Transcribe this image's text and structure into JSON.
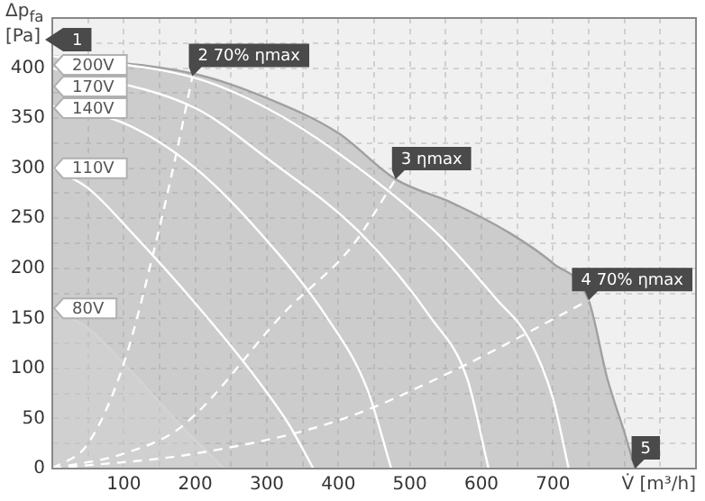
{
  "chart_data": {
    "type": "line",
    "xlabel": "V̇ [m³/h]",
    "ylabel": "Δp$_{fa}$ [Pa]",
    "xlim": [
      0,
      900
    ],
    "ylim": [
      0,
      450
    ],
    "xticks": [
      {
        "value": 50,
        "label": null
      },
      100,
      {
        "value": 150,
        "label": null
      },
      200,
      {
        "value": 250,
        "label": null
      },
      300,
      {
        "value": 350,
        "label": null
      },
      400,
      {
        "value": 450,
        "label": null
      },
      500,
      {
        "value": 550,
        "label": null
      },
      600,
      {
        "value": 650,
        "label": null
      },
      700,
      {
        "value": 750,
        "label": null
      },
      {
        "value": 800,
        "label": null
      },
      {
        "value": 850,
        "label": null
      }
    ],
    "yticks": [
      0,
      {
        "value": 25,
        "label": null
      },
      50,
      {
        "value": 75,
        "label": null
      },
      100,
      {
        "value": 125,
        "label": null
      },
      150,
      {
        "value": 175,
        "label": null
      },
      200,
      {
        "value": 225,
        "label": null
      },
      250,
      {
        "value": 275,
        "label": null
      },
      300,
      {
        "value": 325,
        "label": null
      },
      350,
      {
        "value": 375,
        "label": null
      },
      400,
      {
        "value": 425,
        "label": null
      }
    ],
    "grid": true,
    "legend": "left",
    "marker": "none",
    "series": [
      {
        "type": "area",
        "color": "#a0a0a0",
        "x": [
          0,
          200,
          300,
          400,
          480,
          560,
          640,
          700,
          750,
          776,
          800,
          815
        ],
        "values": [
          412,
          394,
          370,
          335,
          289,
          265,
          235,
          205,
          168,
          90,
          36,
          0
        ]
      },
      {
        "type": "area",
        "name": "80V",
        "color": "#ffffff",
        "x": [
          0,
          50,
          100,
          181,
          240
        ],
        "values": [
          160,
          140,
          105,
          42,
          0
        ]
      },
      {
        "name": "200V",
        "color": "#ffffff",
        "x": [
          0,
          200,
          300,
          400,
          538,
          620,
          666,
          700,
          722
        ],
        "values": [
          412,
          390,
          360,
          315,
          235,
          170,
          130,
          70,
          0
        ]
      },
      {
        "name": "170V",
        "color": "#ffffff",
        "x": [
          0,
          200,
          300,
          431,
          530,
          580,
          610
        ],
        "values": [
          400,
          360,
          310,
          235,
          150,
          90,
          0
        ]
      },
      {
        "name": "140V",
        "color": "#ffffff",
        "x": [
          0,
          100,
          200,
          291,
          385,
          440,
          474
        ],
        "values": [
          362,
          345,
          300,
          235,
          150,
          80,
          0
        ]
      },
      {
        "name": "110V",
        "color": "#ffffff",
        "x": [
          0,
          50,
          112,
          200,
          279,
          330,
          365
        ],
        "values": [
          300,
          280,
          235,
          165,
          96,
          45,
          0
        ]
      },
      {
        "color": "#ffffff",
        "line_style": "dashed",
        "x": [
          0,
          50,
          100,
          148,
          175,
          196
        ],
        "values": [
          0,
          25,
          105,
          235,
          320,
          392
        ]
      },
      {
        "color": "#ffffff",
        "line_style": "dashed",
        "x": [
          0,
          100,
          181,
          326,
          419,
          480
        ],
        "values": [
          0,
          15,
          42,
          157,
          222,
          289
        ]
      },
      {
        "color": "#ffffff",
        "line_style": "dashed",
        "x": [
          0,
          200,
          400,
          556,
          750
        ],
        "values": [
          0,
          15,
          48,
          96,
          168
        ]
      }
    ],
    "annotations": [
      "1",
      {
        "text": "2 70% ηmax",
        "x": 196,
        "y": 392
      },
      {
        "text": "3 ηmax",
        "x": 480,
        "y": 289
      },
      {
        "text": "4 70% ηmax",
        "x": 750,
        "y": 168
      },
      {
        "text": "5",
        "x": 815,
        "y": 0
      }
    ]
  }
}
